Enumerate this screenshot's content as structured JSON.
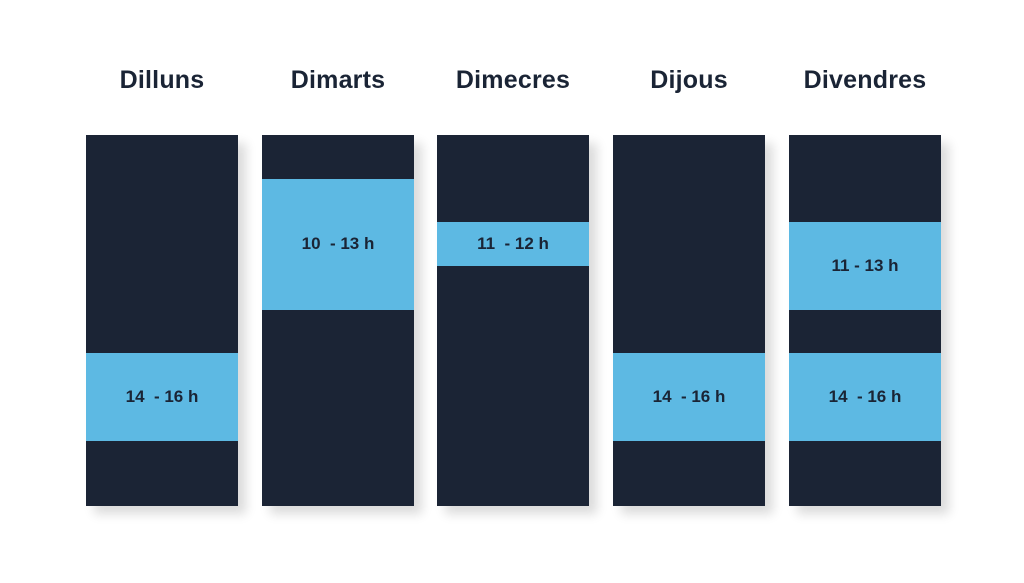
{
  "colors": {
    "closed": "#1b2435",
    "open": "#5db9e3",
    "text": "#1a2435",
    "background": "#ffffff"
  },
  "days": [
    {
      "name": "Dilluns",
      "slots": [
        {
          "label": "14  - 16 h",
          "start": 14,
          "end": 16
        }
      ]
    },
    {
      "name": "Dimarts",
      "slots": [
        {
          "label": "10  - 13 h",
          "start": 10,
          "end": 13
        }
      ]
    },
    {
      "name": "Dimecres",
      "slots": [
        {
          "label": "11  - 12 h",
          "start": 11,
          "end": 12
        }
      ]
    },
    {
      "name": "Dijous",
      "slots": [
        {
          "label": "14  - 16 h",
          "start": 14,
          "end": 16
        }
      ]
    },
    {
      "name": "Divendres",
      "slots": [
        {
          "label": "11 - 13 h",
          "start": 11,
          "end": 13
        },
        {
          "label": "14  - 16 h",
          "start": 14,
          "end": 16
        }
      ]
    }
  ],
  "day_range": {
    "start": 9,
    "end": 17.5
  }
}
